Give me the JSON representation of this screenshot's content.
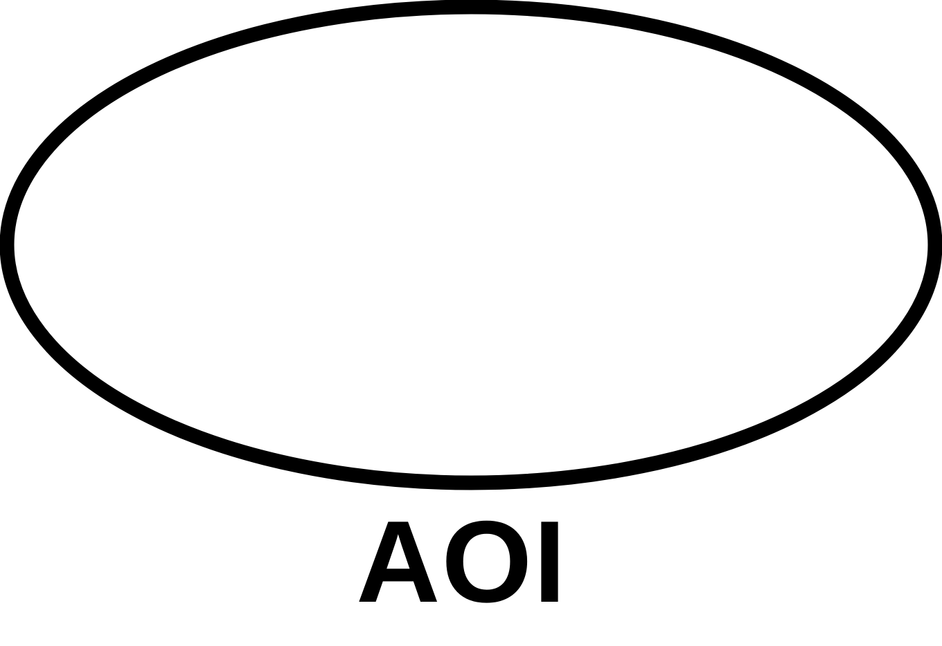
{
  "diagram": {
    "label": "AOI",
    "colors": {
      "stroke": "#000000",
      "fill": "#ffffff",
      "text": "#000000",
      "background": "#ffffff"
    },
    "shapes": [
      {
        "kind": "ellipse",
        "name": "aoi-ellipse"
      }
    ]
  }
}
